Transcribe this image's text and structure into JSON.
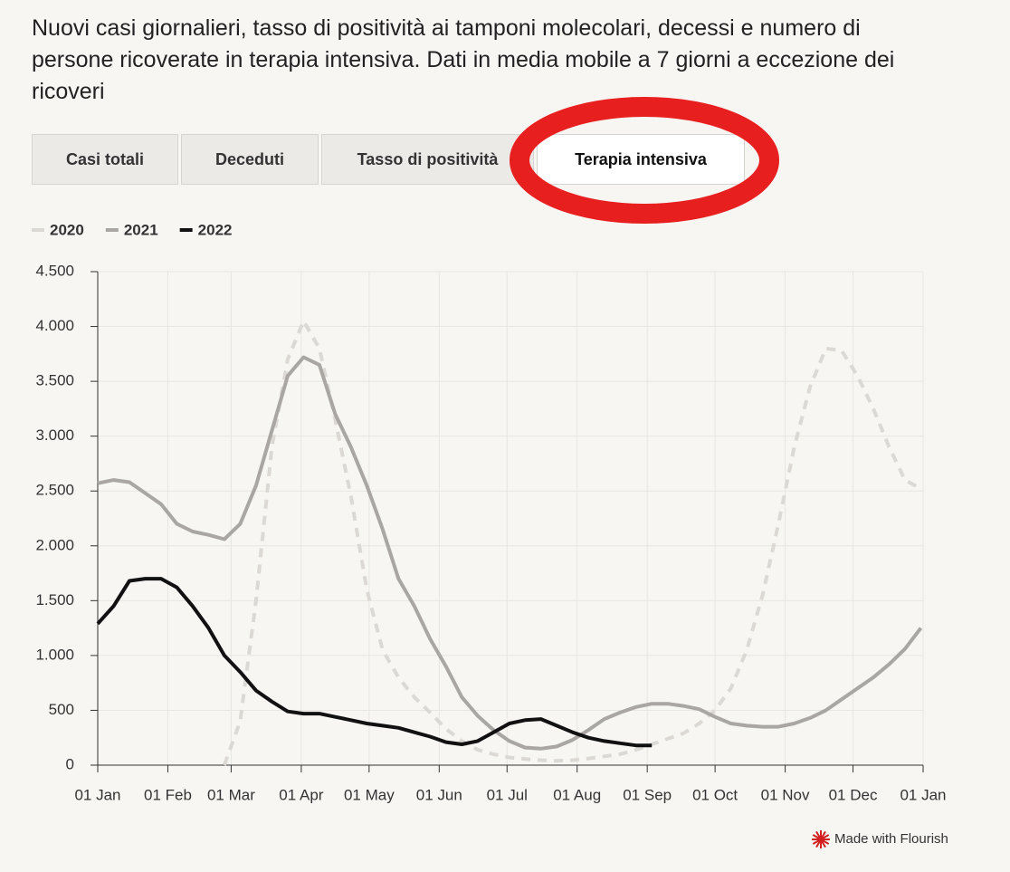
{
  "chart_data": {
    "type": "line",
    "title": "Nuovi casi giornalieri, tasso di positività ai tamponi molecolari, decessi e numero di persone ricoverate in terapia intensiva. Dati in media mobile a 7 giorni a eccezione dei ricoveri",
    "tabs": [
      "Casi totali",
      "Deceduti",
      "Tasso di positività",
      "Terapia intensiva"
    ],
    "selected_tab": 3,
    "x": [
      0,
      7,
      14,
      21,
      28,
      35,
      42,
      49,
      56,
      63,
      70,
      77,
      84,
      91,
      98,
      105,
      112,
      119,
      126,
      133,
      140,
      147,
      154,
      161,
      168,
      175,
      182,
      189,
      196,
      203,
      210,
      217,
      224,
      231,
      238,
      245,
      252,
      259,
      266,
      273,
      280,
      287,
      294,
      301,
      308,
      315,
      322,
      329,
      336,
      343,
      350,
      357,
      364
    ],
    "series": [
      {
        "name": "2020",
        "color": "#dcd9d4",
        "dashed": true,
        "values": [
          null,
          null,
          null,
          null,
          null,
          null,
          null,
          null,
          0,
          400,
          1500,
          2900,
          3700,
          4050,
          3800,
          3150,
          2450,
          1600,
          1050,
          800,
          620,
          480,
          330,
          220,
          140,
          100,
          70,
          55,
          45,
          40,
          45,
          60,
          80,
          100,
          140,
          190,
          240,
          290,
          380,
          500,
          700,
          1050,
          1550,
          2200,
          2900,
          3450,
          3800,
          3780,
          3550,
          3250,
          2900,
          2600,
          2520
        ]
      },
      {
        "name": "2021",
        "color": "#a9a6a3",
        "dashed": false,
        "values": [
          2570,
          2600,
          2580,
          2480,
          2380,
          2200,
          2130,
          2100,
          2060,
          2200,
          2550,
          3050,
          3550,
          3720,
          3650,
          3200,
          2900,
          2550,
          2150,
          1700,
          1450,
          1150,
          900,
          620,
          450,
          320,
          220,
          160,
          150,
          170,
          230,
          320,
          420,
          480,
          530,
          560,
          560,
          540,
          510,
          440,
          380,
          360,
          350,
          350,
          380,
          430,
          500,
          600,
          700,
          800,
          920,
          1060,
          1250
        ]
      },
      {
        "name": "2022",
        "color": "#111111",
        "dashed": false,
        "values": [
          1290,
          1450,
          1680,
          1700,
          1700,
          1620,
          1450,
          1250,
          1000,
          850,
          680,
          580,
          490,
          470,
          470,
          440,
          410,
          380,
          360,
          340,
          300,
          260,
          210,
          190,
          220,
          300,
          380,
          410,
          420,
          360,
          300,
          250,
          220,
          200,
          180,
          180,
          null,
          null,
          null,
          null,
          null,
          null,
          null,
          null,
          null,
          null,
          null,
          null,
          null,
          null,
          null,
          null,
          null
        ]
      }
    ],
    "xlim": [
      0,
      365
    ],
    "xticks": [
      {
        "value": 0,
        "label": "01 Jan"
      },
      {
        "value": 31,
        "label": "01 Feb"
      },
      {
        "value": 59,
        "label": "01 Mar"
      },
      {
        "value": 90,
        "label": "01 Apr"
      },
      {
        "value": 120,
        "label": "01 May"
      },
      {
        "value": 151,
        "label": "01 Jun"
      },
      {
        "value": 181,
        "label": "01 Jul"
      },
      {
        "value": 212,
        "label": "01 Aug"
      },
      {
        "value": 243,
        "label": "01 Sep"
      },
      {
        "value": 273,
        "label": "01 Oct"
      },
      {
        "value": 304,
        "label": "01 Nov"
      },
      {
        "value": 334,
        "label": "01 Dec"
      },
      {
        "value": 365,
        "label": "01 Jan"
      }
    ],
    "ylim": [
      0,
      4500
    ],
    "yticks": [
      0,
      500,
      {
        "value": 1000,
        "label": "1.000"
      },
      {
        "value": 1500,
        "label": "1.500"
      },
      {
        "value": 2000,
        "label": "2.000"
      },
      {
        "value": 2500,
        "label": "2.500"
      },
      {
        "value": 3000,
        "label": "3.000"
      },
      {
        "value": 3500,
        "label": "3.500"
      },
      {
        "value": 4000,
        "label": "4.000"
      },
      {
        "value": 4500,
        "label": "4.500"
      }
    ],
    "grid": true,
    "legend": "top-left",
    "credit": "Made with Flourish"
  }
}
